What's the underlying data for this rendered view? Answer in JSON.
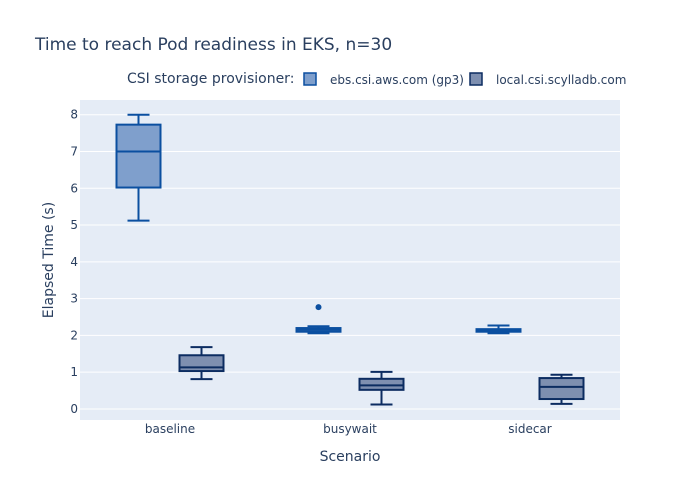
{
  "chart_data": {
    "type": "box",
    "title": "Time to reach Pod readiness in EKS, n=30",
    "xlabel": "Scenario",
    "ylabel": "Elapsed Time (s)",
    "ylim": [
      -0.3,
      8.4
    ],
    "yticks": [
      0,
      1,
      2,
      3,
      4,
      5,
      6,
      7,
      8
    ],
    "categories": [
      "baseline",
      "busywait",
      "sidecar"
    ],
    "legend_title": "CSI storage provisioner:",
    "legend_position": "top",
    "grid": true,
    "series": [
      {
        "name": "ebs.csi.aws.com (gp3)",
        "fill": "#7f9fcc",
        "line": "#0b4fa0",
        "boxes": [
          {
            "category": "baseline",
            "min": 5.12,
            "q1": 6.02,
            "median": 7.0,
            "q3": 7.73,
            "max": 8.0,
            "outliers": []
          },
          {
            "category": "busywait",
            "min": 2.06,
            "q1": 2.1,
            "median": 2.15,
            "q3": 2.2,
            "max": 2.25,
            "outliers": [
              2.77
            ]
          },
          {
            "category": "sidecar",
            "min": 2.06,
            "q1": 2.1,
            "median": 2.13,
            "q3": 2.17,
            "max": 2.27,
            "outliers": []
          }
        ]
      },
      {
        "name": "local.csi.scylladb.com",
        "fill": "#7e8fb0",
        "line": "#0c2c61",
        "boxes": [
          {
            "category": "baseline",
            "min": 0.81,
            "q1": 1.03,
            "median": 1.13,
            "q3": 1.46,
            "max": 1.68,
            "outliers": []
          },
          {
            "category": "busywait",
            "min": 0.12,
            "q1": 0.52,
            "median": 0.64,
            "q3": 0.82,
            "max": 1.01,
            "outliers": []
          },
          {
            "category": "sidecar",
            "min": 0.14,
            "q1": 0.27,
            "median": 0.6,
            "q3": 0.84,
            "max": 0.93,
            "outliers": []
          }
        ]
      }
    ]
  },
  "colors": {
    "plot_background": "#e5ecf6",
    "grid": "#ffffff",
    "text": "#2a3f5f"
  }
}
